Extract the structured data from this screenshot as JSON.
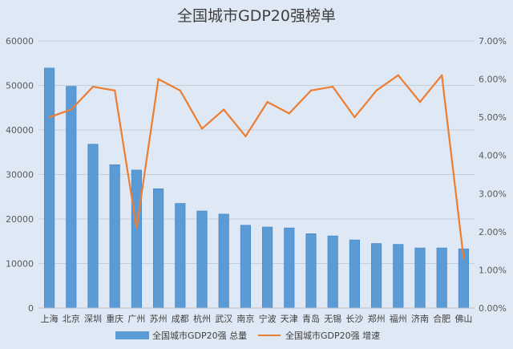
{
  "chart_data": {
    "type": "bar",
    "title": "全国城市GDP20强榜单",
    "categories": [
      "上海",
      "北京",
      "深圳",
      "重庆",
      "广州",
      "苏州",
      "成都",
      "杭州",
      "武汉",
      "南京",
      "宁波",
      "天津",
      "青岛",
      "无锡",
      "长沙",
      "郑州",
      "福州",
      "济南",
      "合肥",
      "佛山"
    ],
    "series": [
      {
        "name": "全国城市GDP20强 总量",
        "type": "bar",
        "axis": "left",
        "values": [
          53900,
          49800,
          36800,
          32200,
          31000,
          26800,
          23500,
          21800,
          21100,
          18600,
          18200,
          18000,
          16700,
          16200,
          15300,
          14500,
          14300,
          13500,
          13500,
          13300
        ]
      },
      {
        "name": "全国城市GDP20强 增速",
        "type": "line",
        "axis": "right",
        "values": [
          5.0,
          5.2,
          5.8,
          5.7,
          2.1,
          6.0,
          5.7,
          4.7,
          5.2,
          4.5,
          5.4,
          5.1,
          5.7,
          5.8,
          5.0,
          5.7,
          6.1,
          5.4,
          6.1,
          1.3
        ]
      }
    ],
    "ylim": [
      0,
      60000
    ],
    "y_ticks": [
      "0",
      "10000",
      "20000",
      "30000",
      "40000",
      "50000",
      "60000"
    ],
    "y2lim": [
      0,
      7
    ],
    "y2_ticks": [
      "0.00%",
      "1.00%",
      "2.00%",
      "3.00%",
      "4.00%",
      "5.00%",
      "6.00%",
      "7.00%"
    ],
    "grid": true,
    "legend": "bottom",
    "colors": {
      "bar": "#5b9bd5",
      "bar_edge": "#3f7fbf",
      "line": "#ed7d31",
      "grid": "#c3cedb",
      "background": "#dfe9f5"
    }
  }
}
